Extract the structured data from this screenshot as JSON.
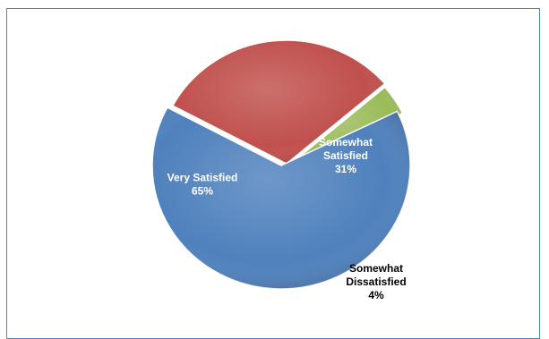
{
  "chart_data": {
    "type": "pie",
    "title": "",
    "slices": [
      {
        "name": "Very Satisfied",
        "line1": "Very Satisfied",
        "line2": "",
        "pct_label": "65%",
        "value": 65,
        "color": "#4f81bd",
        "label_color": "#ffffff"
      },
      {
        "name": "Somewhat Satisfied",
        "line1": "Somewhat",
        "line2": "Satisfied",
        "pct_label": "31%",
        "value": 31,
        "color": "#c0504d",
        "label_color": "#ffffff"
      },
      {
        "name": "Somewhat Dissatisfied",
        "line1": "Somewhat",
        "line2": "Dissatisfied",
        "pct_label": "4%",
        "value": 4,
        "color": "#9bbb59",
        "label_color": "#000000"
      }
    ],
    "legend": "none"
  }
}
